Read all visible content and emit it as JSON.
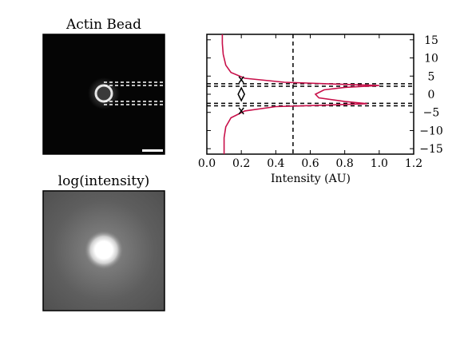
{
  "panels": {
    "top_image": {
      "title": "Actin Bead"
    },
    "bottom_image": {
      "title": "log(intensity)"
    }
  },
  "chart_data": {
    "type": "line",
    "orientation": "horizontal-profile",
    "xlabel": "Intensity (AU)",
    "ylabel": "",
    "xlim": [
      0.0,
      1.2
    ],
    "ylim": [
      -16.5,
      16.5
    ],
    "x_ticks": [
      "0.0",
      "0.2",
      "0.4",
      "0.6",
      "0.8",
      "1.0",
      "1.2"
    ],
    "y_ticks": [
      "15",
      "10",
      "5",
      "0",
      "−5",
      "−10",
      "−15"
    ],
    "y_tick_values": [
      15,
      10,
      5,
      0,
      -5,
      -10,
      -15
    ],
    "series": [
      {
        "color": "#c8104a",
        "points": [
          {
            "x": 0.09,
            "y": 16.5
          },
          {
            "x": 0.09,
            "y": 14
          },
          {
            "x": 0.095,
            "y": 11
          },
          {
            "x": 0.11,
            "y": 8
          },
          {
            "x": 0.14,
            "y": 6
          },
          {
            "x": 0.22,
            "y": 4.4
          },
          {
            "x": 0.45,
            "y": 3.3
          },
          {
            "x": 0.75,
            "y": 2.8
          },
          {
            "x": 1.0,
            "y": 2.4
          },
          {
            "x": 0.8,
            "y": 1.9
          },
          {
            "x": 0.68,
            "y": 1.2
          },
          {
            "x": 0.63,
            "y": 0.0
          },
          {
            "x": 0.65,
            "y": -1.0
          },
          {
            "x": 0.8,
            "y": -2.0
          },
          {
            "x": 0.93,
            "y": -2.6
          },
          {
            "x": 0.7,
            "y": -3.0
          },
          {
            "x": 0.4,
            "y": -3.4
          },
          {
            "x": 0.22,
            "y": -4.6
          },
          {
            "x": 0.14,
            "y": -6.5
          },
          {
            "x": 0.11,
            "y": -9
          },
          {
            "x": 0.1,
            "y": -12
          },
          {
            "x": 0.1,
            "y": -16.5
          }
        ]
      }
    ],
    "reference_lines": [
      {
        "orientation": "vertical",
        "x": 0.5,
        "style": "dashed"
      },
      {
        "orientation": "horizontal",
        "y": 2.9,
        "style": "dashed"
      },
      {
        "orientation": "horizontal",
        "y": 2.2,
        "style": "dashed"
      },
      {
        "orientation": "horizontal",
        "y": -2.5,
        "style": "dashed"
      },
      {
        "orientation": "horizontal",
        "y": -3.2,
        "style": "dashed"
      }
    ],
    "markers": [
      {
        "x": 0.2,
        "y": 4.0,
        "shape": "x"
      },
      {
        "x": 0.2,
        "y": 0.0,
        "shape": "diamond"
      },
      {
        "x": 0.2,
        "y": -4.6,
        "shape": "x"
      }
    ],
    "grid": false
  }
}
